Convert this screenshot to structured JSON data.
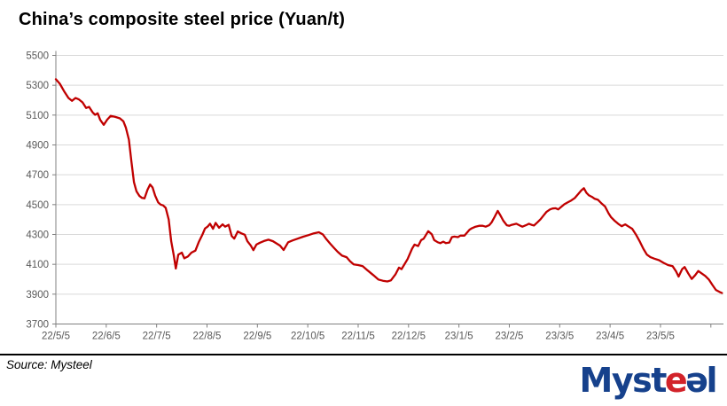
{
  "header": {
    "title": "China’s composite steel price (Yuan/t)"
  },
  "footer": {
    "source_note": "Source: Mysteel"
  },
  "logo": {
    "name": "Mysteel",
    "parts": [
      {
        "text": "Myst",
        "color": "#16418c"
      },
      {
        "text": "e",
        "color": "#d2232a"
      },
      {
        "text": "ə",
        "color": "#16418c"
      },
      {
        "text": "l",
        "color": "#16418c"
      }
    ]
  },
  "chart_data": {
    "type": "line",
    "title": "China’s composite steel price (Yuan/t)",
    "xlabel": "",
    "ylabel": "",
    "ylim": [
      3700,
      5500
    ],
    "y_ticks": [
      5500,
      5300,
      5100,
      4900,
      4700,
      4500,
      4300,
      4100,
      3900,
      3700
    ],
    "x_tick_labels": [
      "22/5/5",
      "22/6/5",
      "22/7/5",
      "22/8/5",
      "22/9/5",
      "22/10/5",
      "22/11/5",
      "22/12/5",
      "23/1/5",
      "23/2/5",
      "23/3/5",
      "23/4/5",
      "23/5/5"
    ],
    "x_axis_unit": "months since 2022-05-05",
    "x_extent_months": 13.25,
    "x_minor_tick_months": [
      13
    ],
    "grid": "horizontal",
    "legend": "none",
    "grid_color": "#d9d9d9",
    "axis_color": "#808080",
    "label_color": "#595959",
    "series": [
      {
        "name": "China composite steel price (Yuan/t)",
        "color": "#c00000",
        "points": [
          [
            0,
            5340
          ],
          [
            0.08,
            5310
          ],
          [
            0.16,
            5262
          ],
          [
            0.25,
            5215
          ],
          [
            0.32,
            5195
          ],
          [
            0.39,
            5215
          ],
          [
            0.46,
            5205
          ],
          [
            0.53,
            5185
          ],
          [
            0.6,
            5148
          ],
          [
            0.66,
            5155
          ],
          [
            0.73,
            5118
          ],
          [
            0.78,
            5102
          ],
          [
            0.83,
            5112
          ],
          [
            0.88,
            5068
          ],
          [
            0.95,
            5035
          ],
          [
            1.02,
            5070
          ],
          [
            1.09,
            5095
          ],
          [
            1.18,
            5088
          ],
          [
            1.27,
            5078
          ],
          [
            1.34,
            5058
          ],
          [
            1.39,
            5015
          ],
          [
            1.45,
            4935
          ],
          [
            1.5,
            4790
          ],
          [
            1.55,
            4650
          ],
          [
            1.6,
            4590
          ],
          [
            1.66,
            4558
          ],
          [
            1.71,
            4545
          ],
          [
            1.76,
            4542
          ],
          [
            1.82,
            4600
          ],
          [
            1.87,
            4635
          ],
          [
            1.92,
            4615
          ],
          [
            1.97,
            4560
          ],
          [
            2.03,
            4515
          ],
          [
            2.08,
            4500
          ],
          [
            2.13,
            4495
          ],
          [
            2.18,
            4478
          ],
          [
            2.24,
            4400
          ],
          [
            2.29,
            4255
          ],
          [
            2.34,
            4160
          ],
          [
            2.38,
            4072
          ],
          [
            2.43,
            4165
          ],
          [
            2.5,
            4178
          ],
          [
            2.55,
            4140
          ],
          [
            2.62,
            4152
          ],
          [
            2.69,
            4178
          ],
          [
            2.77,
            4192
          ],
          [
            2.84,
            4252
          ],
          [
            2.91,
            4300
          ],
          [
            2.96,
            4340
          ],
          [
            3.01,
            4352
          ],
          [
            3.06,
            4372
          ],
          [
            3.12,
            4338
          ],
          [
            3.17,
            4378
          ],
          [
            3.24,
            4345
          ],
          [
            3.31,
            4368
          ],
          [
            3.36,
            4352
          ],
          [
            3.43,
            4365
          ],
          [
            3.49,
            4290
          ],
          [
            3.54,
            4272
          ],
          [
            3.61,
            4320
          ],
          [
            3.68,
            4308
          ],
          [
            3.75,
            4298
          ],
          [
            3.8,
            4255
          ],
          [
            3.87,
            4225
          ],
          [
            3.92,
            4195
          ],
          [
            3.98,
            4232
          ],
          [
            4.05,
            4245
          ],
          [
            4.13,
            4256
          ],
          [
            4.22,
            4265
          ],
          [
            4.31,
            4255
          ],
          [
            4.38,
            4240
          ],
          [
            4.45,
            4225
          ],
          [
            4.52,
            4196
          ],
          [
            4.61,
            4248
          ],
          [
            4.7,
            4260
          ],
          [
            4.8,
            4272
          ],
          [
            4.91,
            4285
          ],
          [
            5.01,
            4295
          ],
          [
            5.12,
            4308
          ],
          [
            5.22,
            4315
          ],
          [
            5.3,
            4300
          ],
          [
            5.37,
            4268
          ],
          [
            5.44,
            4240
          ],
          [
            5.52,
            4210
          ],
          [
            5.59,
            4185
          ],
          [
            5.68,
            4158
          ],
          [
            5.77,
            4148
          ],
          [
            5.84,
            4120
          ],
          [
            5.91,
            4100
          ],
          [
            6,
            4095
          ],
          [
            6.09,
            4088
          ],
          [
            6.19,
            4058
          ],
          [
            6.3,
            4028
          ],
          [
            6.4,
            3998
          ],
          [
            6.49,
            3990
          ],
          [
            6.58,
            3985
          ],
          [
            6.65,
            3992
          ],
          [
            6.74,
            4032
          ],
          [
            6.81,
            4078
          ],
          [
            6.86,
            4068
          ],
          [
            6.98,
            4135
          ],
          [
            7.07,
            4205
          ],
          [
            7.12,
            4232
          ],
          [
            7.19,
            4222
          ],
          [
            7.25,
            4262
          ],
          [
            7.3,
            4272
          ],
          [
            7.39,
            4322
          ],
          [
            7.46,
            4302
          ],
          [
            7.51,
            4262
          ],
          [
            7.58,
            4248
          ],
          [
            7.63,
            4242
          ],
          [
            7.69,
            4252
          ],
          [
            7.74,
            4242
          ],
          [
            7.81,
            4246
          ],
          [
            7.86,
            4282
          ],
          [
            7.91,
            4286
          ],
          [
            7.98,
            4282
          ],
          [
            8.03,
            4292
          ],
          [
            8.11,
            4292
          ],
          [
            8.16,
            4312
          ],
          [
            8.21,
            4332
          ],
          [
            8.26,
            4342
          ],
          [
            8.33,
            4352
          ],
          [
            8.4,
            4358
          ],
          [
            8.47,
            4358
          ],
          [
            8.53,
            4352
          ],
          [
            8.6,
            4362
          ],
          [
            8.65,
            4382
          ],
          [
            8.7,
            4412
          ],
          [
            8.77,
            4458
          ],
          [
            8.82,
            4430
          ],
          [
            8.88,
            4392
          ],
          [
            8.95,
            4362
          ],
          [
            9,
            4358
          ],
          [
            9.05,
            4365
          ],
          [
            9.14,
            4372
          ],
          [
            9.21,
            4360
          ],
          [
            9.26,
            4352
          ],
          [
            9.33,
            4362
          ],
          [
            9.39,
            4372
          ],
          [
            9.44,
            4365
          ],
          [
            9.49,
            4360
          ],
          [
            9.56,
            4382
          ],
          [
            9.62,
            4402
          ],
          [
            9.69,
            4432
          ],
          [
            9.74,
            4452
          ],
          [
            9.81,
            4468
          ],
          [
            9.86,
            4474
          ],
          [
            9.92,
            4476
          ],
          [
            9.97,
            4468
          ],
          [
            10.04,
            4488
          ],
          [
            10.09,
            4502
          ],
          [
            10.16,
            4515
          ],
          [
            10.23,
            4528
          ],
          [
            10.3,
            4545
          ],
          [
            10.37,
            4572
          ],
          [
            10.43,
            4595
          ],
          [
            10.48,
            4610
          ],
          [
            10.53,
            4580
          ],
          [
            10.58,
            4562
          ],
          [
            10.64,
            4552
          ],
          [
            10.69,
            4540
          ],
          [
            10.76,
            4532
          ],
          [
            10.83,
            4508
          ],
          [
            10.9,
            4488
          ],
          [
            10.97,
            4442
          ],
          [
            11.02,
            4415
          ],
          [
            11.09,
            4392
          ],
          [
            11.16,
            4372
          ],
          [
            11.23,
            4355
          ],
          [
            11.3,
            4368
          ],
          [
            11.37,
            4352
          ],
          [
            11.44,
            4338
          ],
          [
            11.52,
            4295
          ],
          [
            11.59,
            4252
          ],
          [
            11.66,
            4205
          ],
          [
            11.73,
            4165
          ],
          [
            11.8,
            4148
          ],
          [
            11.88,
            4138
          ],
          [
            11.97,
            4128
          ],
          [
            12.06,
            4110
          ],
          [
            12.15,
            4095
          ],
          [
            12.24,
            4088
          ],
          [
            12.31,
            4052
          ],
          [
            12.36,
            4018
          ],
          [
            12.43,
            4068
          ],
          [
            12.48,
            4082
          ],
          [
            12.55,
            4040
          ],
          [
            12.62,
            4002
          ],
          [
            12.69,
            4028
          ],
          [
            12.75,
            4055
          ],
          [
            12.82,
            4038
          ],
          [
            12.89,
            4022
          ],
          [
            12.96,
            3998
          ],
          [
            13.03,
            3962
          ],
          [
            13.1,
            3928
          ],
          [
            13.17,
            3915
          ],
          [
            13.22,
            3908
          ]
        ]
      }
    ]
  }
}
